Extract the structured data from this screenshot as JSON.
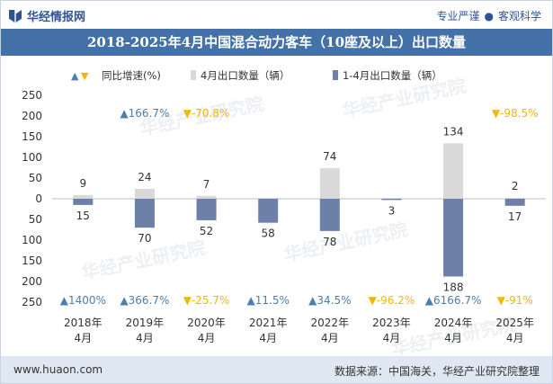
{
  "header": {
    "brand": "华经情报网",
    "tagline_1": "专业严谨",
    "tagline_sep": "●",
    "tagline_2": "客观科学",
    "title": "2018-2025年4月中国混合动力客车（10座及以上）出口数量"
  },
  "footer": {
    "url": "www.huaon.com",
    "source": "数据来源：中国海关，华经产业研究院整理"
  },
  "watermark": "华经产业研究院",
  "colors": {
    "title_bg": "#4472a8",
    "april_bar": "#d9d9d9",
    "ytd_bar": "#6d80a8",
    "up": "#4a7fb0",
    "down": "#f2b705"
  },
  "chart_data": {
    "type": "bar",
    "legend": {
      "growth": "同比增速(%)",
      "april": "4月出口数量（辆）",
      "ytd": "1-4月出口数量（辆）"
    },
    "categories": [
      "2018年\n4月",
      "2019年\n4月",
      "2020年\n4月",
      "2021年\n4月",
      "2022年\n4月",
      "2023年\n4月",
      "2024年\n4月",
      "2025年\n4月"
    ],
    "series": [
      {
        "name": "4月出口数量（辆）",
        "values": [
          9,
          24,
          7,
          0,
          74,
          0,
          134,
          2
        ],
        "labels": [
          "9",
          "24",
          "7",
          "",
          "74",
          "",
          "134",
          "2"
        ]
      },
      {
        "name": "1-4月出口数量（辆）",
        "values": [
          15,
          70,
          52,
          58,
          78,
          3,
          188,
          17
        ],
        "labels": [
          "15",
          "70",
          "52",
          "58",
          "78",
          "3",
          "188",
          "17"
        ]
      }
    ],
    "april_growth": [
      {
        "dir": "",
        "label": ""
      },
      {
        "dir": "up",
        "label": "▲166.7%"
      },
      {
        "dir": "down",
        "label": "▼-70.8%"
      },
      {
        "dir": "",
        "label": ""
      },
      {
        "dir": "",
        "label": ""
      },
      {
        "dir": "",
        "label": ""
      },
      {
        "dir": "",
        "label": ""
      },
      {
        "dir": "down",
        "label": "▼-98.5%"
      }
    ],
    "ytd_growth": [
      {
        "dir": "up",
        "label": "▲1400%"
      },
      {
        "dir": "up",
        "label": "▲366.7%"
      },
      {
        "dir": "down",
        "label": "▼-25.7%"
      },
      {
        "dir": "up",
        "label": "▲11.5%"
      },
      {
        "dir": "up",
        "label": "▲34.5%"
      },
      {
        "dir": "down",
        "label": "▼-96.2%"
      },
      {
        "dir": "up",
        "label": "▲6166.7%"
      },
      {
        "dir": "down",
        "label": "▼-91%"
      }
    ],
    "y_ticks": [
      "250",
      "200",
      "150",
      "100",
      "50",
      "0",
      "50",
      "100",
      "150",
      "200",
      "250"
    ],
    "ylim": [
      -250,
      250
    ],
    "grid": false,
    "legend_position": "top"
  }
}
